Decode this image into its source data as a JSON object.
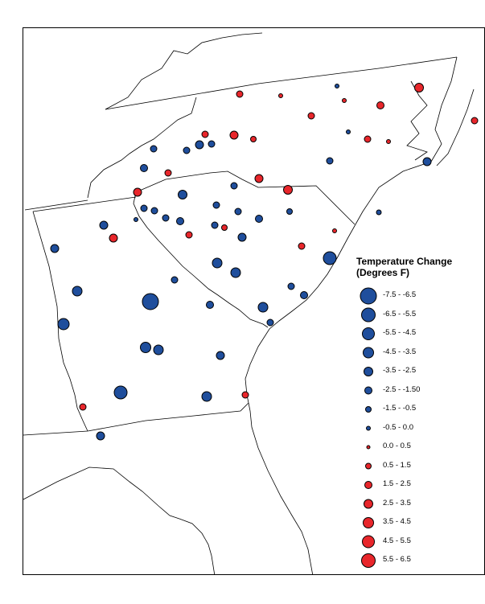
{
  "legend": {
    "title_line1": "Temperature Change",
    "title_line2": "(Degrees F)",
    "items": [
      {
        "label": "-7.5 - -6.5",
        "color": "#1f4e9c"
      },
      {
        "label": "-6.5 - -5.5",
        "color": "#1f4e9c"
      },
      {
        "label": "-5.5 - -4.5",
        "color": "#1f4e9c"
      },
      {
        "label": "-4.5 - -3.5",
        "color": "#1f4e9c"
      },
      {
        "label": "-3.5 - -2.5",
        "color": "#1f4e9c"
      },
      {
        "label": "-2.5 - -1.50",
        "color": "#1f4e9c"
      },
      {
        "label": "-1.5 - -0.5",
        "color": "#1f4e9c"
      },
      {
        "label": "-0.5 - 0.0",
        "color": "#1f4e9c"
      },
      {
        "label": "0.0 - 0.5",
        "color": "#e8262b"
      },
      {
        "label": "0.5 - 1.5",
        "color": "#e8262b"
      },
      {
        "label": "1.5 - 2.5",
        "color": "#e8262b"
      },
      {
        "label": "2.5 - 3.5",
        "color": "#e8262b"
      },
      {
        "label": "3.5 - 4.5",
        "color": "#e8262b"
      },
      {
        "label": "4.5 - 5.5",
        "color": "#e8262b"
      },
      {
        "label": "5.5 - 6.5",
        "color": "#e8262b"
      }
    ]
  },
  "colors": {
    "cooling": "#1f4e9c",
    "warming": "#e8262b",
    "outline": "#000000"
  }
}
